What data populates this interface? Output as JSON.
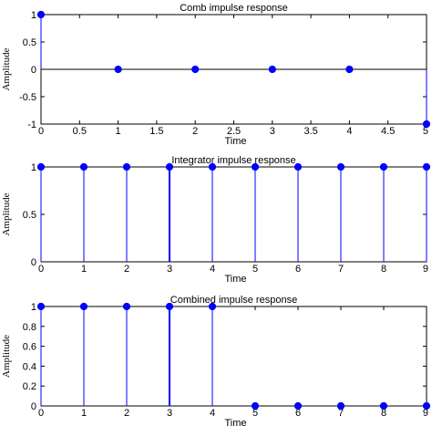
{
  "chart_data": [
    {
      "type": "stem",
      "title": "Comb impulse response",
      "xlabel": "Time",
      "ylabel": "Amplitude",
      "xlim": [
        0,
        5
      ],
      "ylim": [
        -1,
        1
      ],
      "xticks": [
        "0",
        "0.5",
        "1",
        "1.5",
        "2",
        "2.5",
        "3",
        "3.5",
        "4",
        "4.5",
        "5"
      ],
      "yticks": [
        "-1",
        "-0.5",
        "0",
        "0.5",
        "1"
      ],
      "x": [
        0,
        1,
        2,
        3,
        4,
        5
      ],
      "values": [
        1,
        0,
        0,
        0,
        0,
        -1
      ],
      "grid": false,
      "color": "#0000ff"
    },
    {
      "type": "stem",
      "title": "Integrator impulse response",
      "xlabel": "Time",
      "ylabel": "Amplitude",
      "xlim": [
        0,
        9
      ],
      "ylim": [
        0,
        1
      ],
      "xticks": [
        "0",
        "1",
        "2",
        "3",
        "4",
        "5",
        "6",
        "7",
        "8",
        "9"
      ],
      "yticks": [
        "0",
        "0.5",
        "1"
      ],
      "x": [
        0,
        1,
        2,
        3,
        4,
        5,
        6,
        7,
        8,
        9
      ],
      "values": [
        1,
        1,
        1,
        1,
        1,
        1,
        1,
        1,
        1,
        1
      ],
      "grid": false,
      "color": "#0000ff"
    },
    {
      "type": "stem",
      "title": "Combined impulse response",
      "xlabel": "Time",
      "ylabel": "Amplitude",
      "xlim": [
        0,
        9
      ],
      "ylim": [
        0,
        1
      ],
      "xticks": [
        "0",
        "1",
        "2",
        "3",
        "4",
        "5",
        "6",
        "7",
        "8",
        "9"
      ],
      "yticks": [
        "0",
        "0.2",
        "0.4",
        "0.6",
        "0.8",
        "1"
      ],
      "x": [
        0,
        1,
        2,
        3,
        4,
        5,
        6,
        7,
        8,
        9
      ],
      "values": [
        1,
        1,
        1,
        1,
        1,
        0,
        0,
        0,
        0,
        0
      ],
      "grid": false,
      "color": "#0000ff"
    }
  ]
}
